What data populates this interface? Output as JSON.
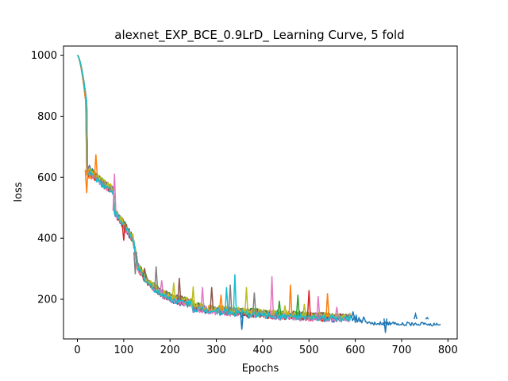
{
  "chart_data": {
    "type": "line",
    "title": "alexnet_EXP_BCE_0.9LrD_ Learning Curve, 5 fold",
    "xlabel": "Epochs",
    "ylabel": "loss",
    "xlim": [
      -30,
      820
    ],
    "ylim": [
      70,
      1030
    ],
    "xticks": [
      0,
      100,
      200,
      300,
      400,
      500,
      600,
      700,
      800
    ],
    "yticks": [
      200,
      400,
      600,
      800,
      1000
    ],
    "grid": false,
    "series": [
      {
        "color": "#1f77b4",
        "end": 785,
        "drop": 20,
        "plateau": 640,
        "amp": 14,
        "seed": 1
      },
      {
        "color": "#ff7f0e",
        "end": 590,
        "drop": 20,
        "plateau": 610,
        "amp": 12,
        "seed": 2
      },
      {
        "color": "#2ca02c",
        "end": 590,
        "drop": 22,
        "plateau": 625,
        "amp": 12,
        "seed": 3
      },
      {
        "color": "#d62728",
        "end": 590,
        "drop": 22,
        "plateau": 620,
        "amp": 12,
        "seed": 4
      },
      {
        "color": "#9467bd",
        "end": 590,
        "drop": 22,
        "plateau": 630,
        "amp": 11,
        "seed": 5
      },
      {
        "color": "#8c564b",
        "end": 590,
        "drop": 22,
        "plateau": 622,
        "amp": 11,
        "seed": 6
      },
      {
        "color": "#e377c2",
        "end": 590,
        "drop": 22,
        "plateau": 628,
        "amp": 13,
        "seed": 7
      },
      {
        "color": "#7f7f7f",
        "end": 590,
        "drop": 22,
        "plateau": 632,
        "amp": 12,
        "seed": 8
      },
      {
        "color": "#bcbd22",
        "end": 590,
        "drop": 22,
        "plateau": 626,
        "amp": 11,
        "seed": 9
      },
      {
        "color": "#17becf",
        "end": 590,
        "drop": 22,
        "plateau": 624,
        "amp": 11,
        "seed": 10
      }
    ],
    "spikes": [
      {
        "color": "#ff7f0e",
        "x": 20,
        "y": 548
      },
      {
        "color": "#ff7f0e",
        "x": 40,
        "y": 675
      },
      {
        "color": "#e377c2",
        "x": 80,
        "y": 612
      },
      {
        "color": "#d62728",
        "x": 100,
        "y": 392
      },
      {
        "color": "#7f7f7f",
        "x": 125,
        "y": 282
      },
      {
        "color": "#8c564b",
        "x": 145,
        "y": 302
      },
      {
        "color": "#7f7f7f",
        "x": 170,
        "y": 308
      },
      {
        "color": "#e377c2",
        "x": 182,
        "y": 262
      },
      {
        "color": "#bcbd22",
        "x": 208,
        "y": 255
      },
      {
        "color": "#8c564b",
        "x": 220,
        "y": 270
      },
      {
        "color": "#bcbd22",
        "x": 250,
        "y": 242
      },
      {
        "color": "#e377c2",
        "x": 270,
        "y": 240
      },
      {
        "color": "#8c564b",
        "x": 290,
        "y": 240
      },
      {
        "color": "#ff7f0e",
        "x": 310,
        "y": 215
      },
      {
        "color": "#17becf",
        "x": 322,
        "y": 240
      },
      {
        "color": "#7f7f7f",
        "x": 330,
        "y": 248
      },
      {
        "color": "#17becf",
        "x": 340,
        "y": 282
      },
      {
        "color": "#1f77b4",
        "x": 355,
        "y": 100
      },
      {
        "color": "#bcbd22",
        "x": 365,
        "y": 240
      },
      {
        "color": "#7f7f7f",
        "x": 382,
        "y": 222
      },
      {
        "color": "#e377c2",
        "x": 420,
        "y": 275
      },
      {
        "color": "#2ca02c",
        "x": 436,
        "y": 195
      },
      {
        "color": "#bcbd22",
        "x": 448,
        "y": 180
      },
      {
        "color": "#ff7f0e",
        "x": 460,
        "y": 248
      },
      {
        "color": "#2ca02c",
        "x": 476,
        "y": 215
      },
      {
        "color": "#bcbd22",
        "x": 490,
        "y": 185
      },
      {
        "color": "#d62728",
        "x": 500,
        "y": 230
      },
      {
        "color": "#e377c2",
        "x": 520,
        "y": 210
      },
      {
        "color": "#ff7f0e",
        "x": 540,
        "y": 220
      },
      {
        "color": "#e377c2",
        "x": 560,
        "y": 175
      },
      {
        "color": "#1f77b4",
        "x": 595,
        "y": 160
      },
      {
        "color": "#1f77b4",
        "x": 665,
        "y": 90
      },
      {
        "color": "#1f77b4",
        "x": 730,
        "y": 152
      },
      {
        "color": "#1f77b4",
        "x": 755,
        "y": 140
      }
    ]
  }
}
